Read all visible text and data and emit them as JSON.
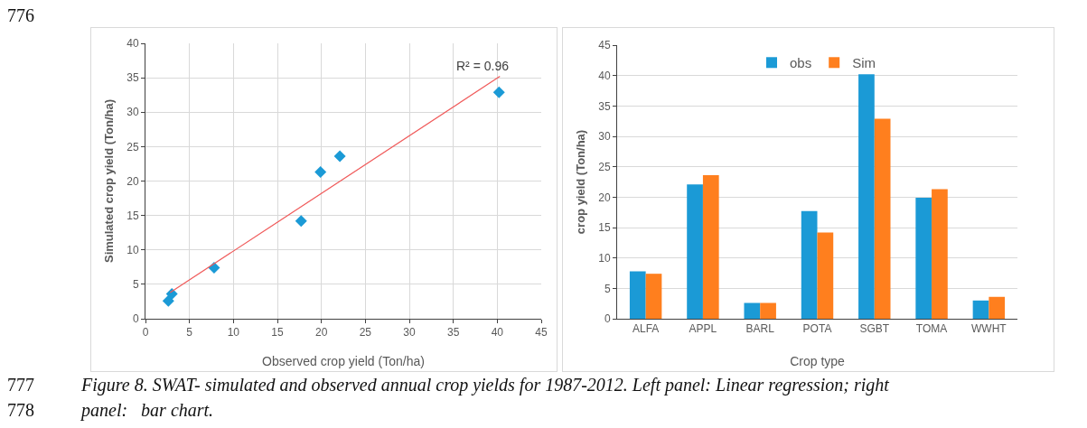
{
  "chart_data": [
    {
      "type": "scatter",
      "xlabel": "Observed crop yield (Ton/ha)",
      "ylabel": "Simulated crop yield (Ton/ha)",
      "x": [
        2.6,
        3.0,
        7.8,
        17.7,
        19.9,
        22.1,
        40.2
      ],
      "series": [
        {
          "color": "#1b9ad6",
          "values": [
            2.6,
            3.6,
            7.4,
            14.2,
            21.3,
            23.6,
            32.9
          ],
          "marker": "diamond"
        },
        {
          "type": "line",
          "color": "#f05a5a",
          "x": [
            2.8,
            40.3
          ],
          "values": [
            3.8,
            35.2
          ],
          "marker": "none"
        }
      ],
      "xlim": [
        0,
        45
      ],
      "xticks": [
        0,
        5,
        10,
        15,
        20,
        25,
        30,
        35,
        40,
        45
      ],
      "ylim": [
        0,
        40
      ],
      "yticks": [
        0,
        5,
        10,
        15,
        20,
        25,
        30,
        35,
        40
      ],
      "grid": true,
      "legend": false,
      "annotations": [
        "R² = 0.96",
        "776"
      ]
    },
    {
      "type": "bar",
      "xlabel": "Crop type",
      "ylabel": "crop yield (Ton/ha)",
      "categories": [
        "ALFA",
        "APPL",
        "BARL",
        "POTA",
        "SGBT",
        "TOMA",
        "WWHT"
      ],
      "series": [
        {
          "name": "obs",
          "color": "#1b9ad6",
          "values": [
            7.8,
            22.1,
            2.6,
            17.7,
            40.2,
            19.9,
            3.0
          ]
        },
        {
          "name": "Sim",
          "color": "#ff7f1e",
          "values": [
            7.4,
            23.6,
            2.6,
            14.2,
            32.9,
            21.3,
            3.6
          ]
        }
      ],
      "ylim": [
        0,
        45
      ],
      "yticks": [
        0,
        5,
        10,
        15,
        20,
        25,
        30,
        35,
        40,
        45
      ],
      "grid": "y",
      "legend": "top",
      "annotations": [
        "777",
        "Figure 8. SWAT- simulated and observed annual crop yields for 1987-2012. Left panel: Linear regression; right",
        "778",
        "panel:   bar chart."
      ]
    }
  ]
}
